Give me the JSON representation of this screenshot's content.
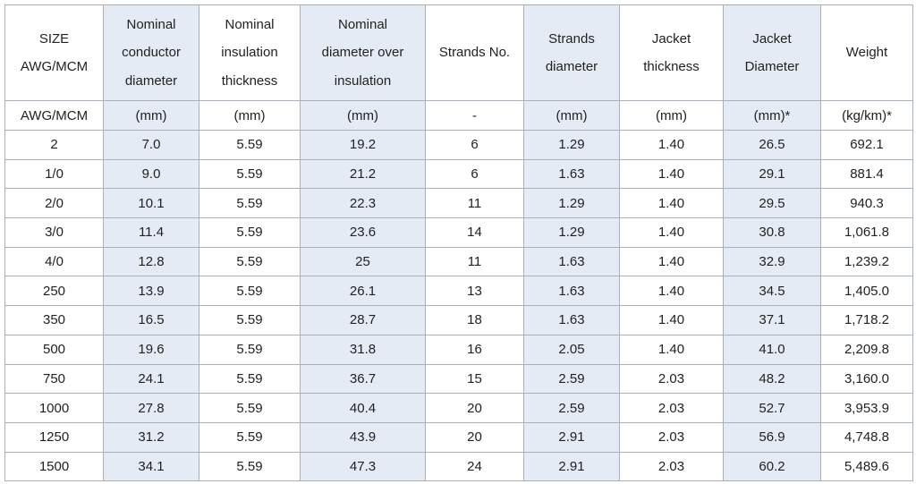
{
  "table": {
    "header": [
      [
        "SIZE",
        "AWG/MCM"
      ],
      [
        "Nominal",
        "conductor",
        "diameter"
      ],
      [
        "Nominal",
        "insulation",
        "thickness"
      ],
      [
        "Nominal",
        "diameter over",
        "insulation"
      ],
      [
        "Strands No."
      ],
      [
        "Strands",
        "diameter"
      ],
      [
        "Jacket",
        "thickness"
      ],
      [
        "Jacket",
        "Diameter"
      ],
      [
        "Weight"
      ]
    ],
    "units": [
      "AWG/MCM",
      "(mm)",
      "(mm)",
      "(mm)",
      "-",
      "(mm)",
      "(mm)",
      "(mm)*",
      "(kg/km)*"
    ],
    "rows": [
      [
        "2",
        "7.0",
        "5.59",
        "19.2",
        "6",
        "1.29",
        "1.40",
        "26.5",
        "692.1"
      ],
      [
        "1/0",
        "9.0",
        "5.59",
        "21.2",
        "6",
        "1.63",
        "1.40",
        "29.1",
        "881.4"
      ],
      [
        "2/0",
        "10.1",
        "5.59",
        "22.3",
        "11",
        "1.29",
        "1.40",
        "29.5",
        "940.3"
      ],
      [
        "3/0",
        "11.4",
        "5.59",
        "23.6",
        "14",
        "1.29",
        "1.40",
        "30.8",
        "1,061.8"
      ],
      [
        "4/0",
        "12.8",
        "5.59",
        "25",
        "11",
        "1.63",
        "1.40",
        "32.9",
        "1,239.2"
      ],
      [
        "250",
        "13.9",
        "5.59",
        "26.1",
        "13",
        "1.63",
        "1.40",
        "34.5",
        "1,405.0"
      ],
      [
        "350",
        "16.5",
        "5.59",
        "28.7",
        "18",
        "1.63",
        "1.40",
        "37.1",
        "1,718.2"
      ],
      [
        "500",
        "19.6",
        "5.59",
        "31.8",
        "16",
        "2.05",
        "1.40",
        "41.0",
        "2,209.8"
      ],
      [
        "750",
        "24.1",
        "5.59",
        "36.7",
        "15",
        "2.59",
        "2.03",
        "48.2",
        "3,160.0"
      ],
      [
        "1000",
        "27.8",
        "5.59",
        "40.4",
        "20",
        "2.59",
        "2.03",
        "52.7",
        "3,953.9"
      ],
      [
        "1250",
        "31.2",
        "5.59",
        "43.9",
        "20",
        "2.91",
        "2.03",
        "56.9",
        "4,748.8"
      ],
      [
        "1500",
        "34.1",
        "5.59",
        "47.3",
        "24",
        "2.91",
        "2.03",
        "60.2",
        "5,489.6"
      ]
    ]
  }
}
